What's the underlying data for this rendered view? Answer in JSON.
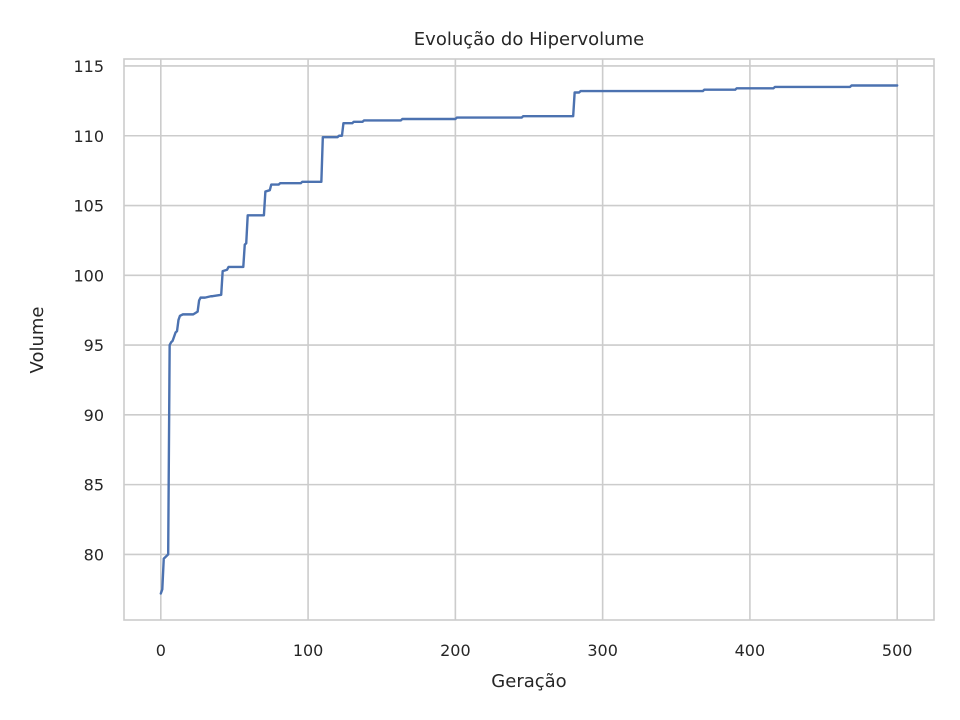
{
  "chart_data": {
    "type": "line",
    "title": "Evolução do Hipervolume",
    "xlabel": "Geração",
    "ylabel": "Volume",
    "xlim": [
      -25,
      525
    ],
    "ylim": [
      75.3,
      115.5
    ],
    "xticks": [
      0,
      100,
      200,
      300,
      400,
      500
    ],
    "yticks": [
      80,
      85,
      90,
      95,
      100,
      105,
      110,
      115
    ],
    "grid": true,
    "colors": {
      "line": "#4c72b0",
      "grid": "#cccccc",
      "spine": "#cccccc",
      "text": "#262626"
    },
    "series": [
      {
        "x": [
          0,
          1,
          2,
          3,
          5,
          6,
          7,
          8,
          10,
          11,
          12,
          13,
          15,
          17,
          22,
          25,
          26,
          27,
          30,
          34,
          35,
          41,
          42,
          45,
          46,
          56,
          57,
          58,
          59,
          70,
          71,
          74,
          75,
          80,
          81,
          85,
          86,
          95,
          96,
          109,
          110,
          120,
          121,
          123,
          124,
          130,
          131,
          137,
          138,
          163,
          164,
          200,
          201,
          213,
          214,
          245,
          246,
          258,
          259,
          280,
          281,
          284,
          285,
          319,
          320,
          340,
          341,
          368,
          369,
          390,
          391,
          416,
          417,
          468,
          469,
          500
        ],
        "y": [
          77.2,
          77.5,
          79.7,
          79.8,
          80.0,
          95.0,
          95.2,
          95.3,
          95.9,
          96.0,
          96.8,
          97.1,
          97.2,
          97.2,
          97.2,
          97.4,
          98.2,
          98.4,
          98.4,
          98.5,
          98.5,
          98.6,
          100.3,
          100.4,
          100.6,
          100.6,
          102.2,
          102.3,
          104.3,
          104.3,
          106.0,
          106.1,
          106.5,
          106.5,
          106.6,
          106.6,
          106.6,
          106.6,
          106.7,
          106.7,
          109.9,
          109.9,
          110.0,
          110.0,
          110.9,
          110.9,
          111.0,
          111.0,
          111.1,
          111.1,
          111.2,
          111.2,
          111.3,
          111.3,
          111.3,
          111.3,
          111.4,
          111.4,
          111.4,
          111.4,
          113.1,
          113.1,
          113.2,
          113.2,
          113.2,
          113.2,
          113.2,
          113.2,
          113.3,
          113.3,
          113.4,
          113.4,
          113.5,
          113.5,
          113.6,
          113.6
        ]
      }
    ]
  }
}
